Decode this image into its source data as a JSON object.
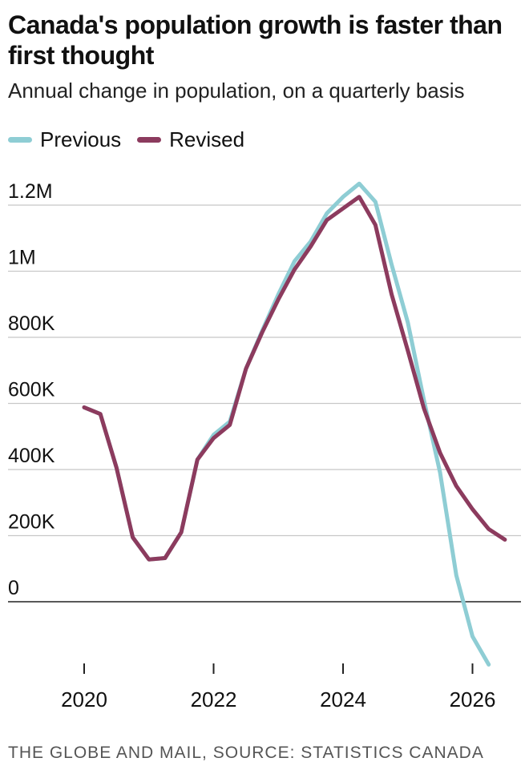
{
  "header": {
    "title": "Canada's population growth is faster than first thought",
    "subtitle": "Annual change in population, on a quarterly basis"
  },
  "legend": {
    "items": [
      {
        "label": "Previous",
        "color": "#8ecdd4"
      },
      {
        "label": "Revised",
        "color": "#8c3b5e"
      }
    ]
  },
  "footer": {
    "source": "THE GLOBE AND MAIL, SOURCE: STATISTICS CANADA"
  },
  "chart_data": {
    "type": "line",
    "title": "Canada's population growth is faster than first thought",
    "subtitle": "Annual change in population, on a quarterly basis",
    "xlabel": "",
    "ylabel": "",
    "x_ticks": [
      2020,
      2022,
      2024,
      2026
    ],
    "y_ticks": [
      {
        "value": 0,
        "label": "0"
      },
      {
        "value": 200000,
        "label": "200K"
      },
      {
        "value": 400000,
        "label": "400K"
      },
      {
        "value": 600000,
        "label": "600K"
      },
      {
        "value": 800000,
        "label": "800K"
      },
      {
        "value": 1000000,
        "label": "1M"
      },
      {
        "value": 1200000,
        "label": "1.2M"
      }
    ],
    "xlim": [
      2019.5,
      2026.75
    ],
    "ylim": [
      -200000,
      1260000
    ],
    "grid": true,
    "legend_position": "top-left",
    "series": [
      {
        "name": "Previous",
        "color": "#8ecdd4",
        "points": [
          [
            2020.0,
            588000
          ],
          [
            2020.25,
            568000
          ],
          [
            2020.5,
            405000
          ],
          [
            2020.75,
            195000
          ],
          [
            2021.0,
            128000
          ],
          [
            2021.25,
            132000
          ],
          [
            2021.5,
            210000
          ],
          [
            2021.75,
            430000
          ],
          [
            2022.0,
            505000
          ],
          [
            2022.25,
            545000
          ],
          [
            2022.5,
            705000
          ],
          [
            2022.75,
            820000
          ],
          [
            2023.0,
            930000
          ],
          [
            2023.25,
            1030000
          ],
          [
            2023.5,
            1090000
          ],
          [
            2023.75,
            1175000
          ],
          [
            2024.0,
            1225000
          ],
          [
            2024.25,
            1265000
          ],
          [
            2024.5,
            1210000
          ],
          [
            2024.75,
            1020000
          ],
          [
            2025.0,
            845000
          ],
          [
            2025.25,
            610000
          ],
          [
            2025.5,
            390000
          ],
          [
            2025.75,
            80000
          ],
          [
            2026.0,
            -105000
          ],
          [
            2026.25,
            -190000
          ]
        ]
      },
      {
        "name": "Revised",
        "color": "#8c3b5e",
        "points": [
          [
            2020.0,
            588000
          ],
          [
            2020.25,
            568000
          ],
          [
            2020.5,
            405000
          ],
          [
            2020.75,
            195000
          ],
          [
            2021.0,
            128000
          ],
          [
            2021.25,
            132000
          ],
          [
            2021.5,
            210000
          ],
          [
            2021.75,
            430000
          ],
          [
            2022.0,
            495000
          ],
          [
            2022.25,
            535000
          ],
          [
            2022.5,
            705000
          ],
          [
            2022.75,
            815000
          ],
          [
            2023.0,
            915000
          ],
          [
            2023.25,
            1005000
          ],
          [
            2023.5,
            1075000
          ],
          [
            2023.75,
            1155000
          ],
          [
            2024.0,
            1190000
          ],
          [
            2024.25,
            1225000
          ],
          [
            2024.5,
            1140000
          ],
          [
            2024.75,
            930000
          ],
          [
            2025.0,
            760000
          ],
          [
            2025.25,
            585000
          ],
          [
            2025.5,
            450000
          ],
          [
            2025.75,
            350000
          ],
          [
            2026.0,
            280000
          ],
          [
            2026.25,
            220000
          ],
          [
            2026.5,
            188000
          ]
        ]
      }
    ]
  }
}
